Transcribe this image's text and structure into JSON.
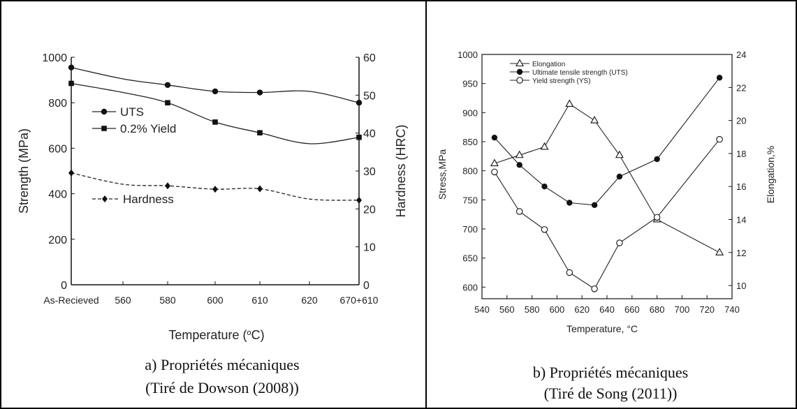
{
  "chart_data": [
    {
      "type": "line",
      "title": "",
      "xlabel": "Temperature (°C)",
      "ylabel": "Strength (MPa)",
      "y2label": "Hardness (HRC)",
      "categories": [
        "As-Recieved",
        "560",
        "580",
        "600",
        "610",
        "620",
        "670+610"
      ],
      "ylim": [
        0,
        1000
      ],
      "yticks": [
        0,
        200,
        400,
        600,
        800,
        1000
      ],
      "y2lim": [
        0,
        60
      ],
      "y2ticks": [
        0,
        10,
        20,
        30,
        40,
        50,
        60
      ],
      "grid": false,
      "legend_position": "center-left",
      "series": [
        {
          "name": "UTS",
          "marker": "circle",
          "axis": "left",
          "line": "solid",
          "curve": [
            [
              0,
              955
            ],
            [
              1,
              905
            ],
            [
              2,
              878
            ],
            [
              3,
              850
            ],
            [
              4,
              845
            ],
            [
              5,
              850
            ],
            [
              6,
              800
            ]
          ],
          "markers": [
            [
              0,
              955
            ],
            [
              2,
              878
            ],
            [
              3,
              850
            ],
            [
              4,
              845
            ],
            [
              6,
              800
            ]
          ]
        },
        {
          "name": "0.2% Yield",
          "marker": "square",
          "axis": "left",
          "line": "solid",
          "curve": [
            [
              0,
              885
            ],
            [
              1,
              845
            ],
            [
              2,
              800
            ],
            [
              3,
              715
            ],
            [
              4,
              668
            ],
            [
              5,
              620
            ],
            [
              6,
              648
            ]
          ],
          "markers": [
            [
              0,
              885
            ],
            [
              2,
              800
            ],
            [
              3,
              715
            ],
            [
              4,
              668
            ],
            [
              6,
              648
            ]
          ]
        },
        {
          "name": "Hardness",
          "marker": "diamond",
          "axis": "right",
          "line": "dashed",
          "curve": [
            [
              0,
              29.5
            ],
            [
              1,
              26.5
            ],
            [
              2,
              26.1
            ],
            [
              3,
              25.2
            ],
            [
              4,
              25.3
            ],
            [
              5,
              22.6
            ],
            [
              6,
              22.3
            ]
          ],
          "markers": [
            [
              0,
              29.5
            ],
            [
              2,
              26.1
            ],
            [
              3,
              25.2
            ],
            [
              4,
              25.3
            ],
            [
              6,
              22.3
            ]
          ]
        }
      ],
      "caption_line1": "a)   Propriétés mécaniques",
      "caption_line2": "(Tiré de Dowson (2008))"
    },
    {
      "type": "line",
      "title": "",
      "xlabel": "Temperature, °C",
      "ylabel": "Stress,MPa",
      "y2label": "Elongation,%",
      "xlim": [
        540,
        740
      ],
      "xticks": [
        540,
        560,
        580,
        600,
        620,
        640,
        660,
        680,
        700,
        720,
        740
      ],
      "ylim": [
        580,
        1000
      ],
      "yticks": [
        600,
        650,
        700,
        750,
        800,
        850,
        900,
        950,
        1000
      ],
      "y2lim": [
        9.2,
        24
      ],
      "y2ticks": [
        10,
        12,
        14,
        16,
        18,
        20,
        22,
        24
      ],
      "grid": false,
      "legend_position": "top-center",
      "series": [
        {
          "name": "Elongation",
          "marker": "triangle-open",
          "axis": "right",
          "x": [
            550,
            570,
            590,
            610,
            630,
            650,
            680,
            730
          ],
          "y": [
            17.4,
            17.9,
            18.4,
            21.0,
            20.0,
            17.9,
            14.0,
            12.0
          ]
        },
        {
          "name": "Ultimate tensile strength (UTS)",
          "marker": "circle-filled",
          "axis": "left",
          "x": [
            550,
            570,
            590,
            610,
            630,
            650,
            680,
            730
          ],
          "y": [
            857,
            810,
            773,
            745,
            741,
            790,
            820,
            960
          ]
        },
        {
          "name": "Yield strength (YS)",
          "marker": "circle-open",
          "axis": "left",
          "x": [
            550,
            570,
            590,
            610,
            630,
            650,
            680,
            730
          ],
          "y": [
            798,
            730,
            699,
            625,
            597,
            676,
            720,
            854
          ]
        }
      ],
      "caption_line1": "b)   Propriétés mécaniques",
      "caption_line2": "(Tiré de Song (2011))"
    }
  ]
}
